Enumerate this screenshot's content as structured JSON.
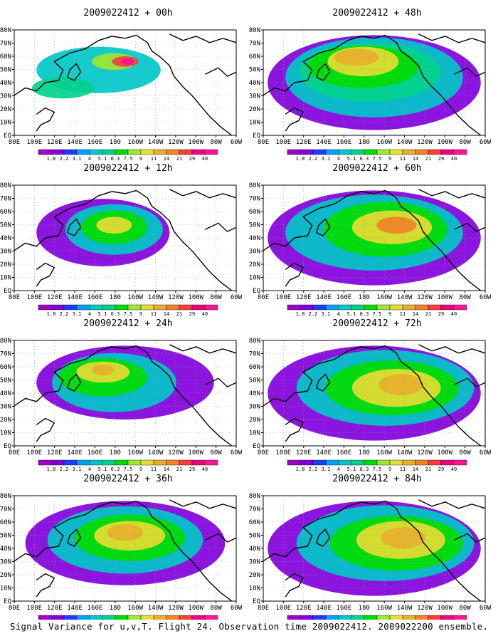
{
  "figure": {
    "caption": "Signal Variance for u,v,T. Flight 24. Observation time 2009022412. 2009022200 ensemble."
  },
  "colorbar": {
    "levels": [
      "1.8",
      "2.2",
      "3.1",
      "4",
      "5.1",
      "6.3",
      "7.5",
      "9",
      "11",
      "14",
      "21",
      "29",
      "40"
    ],
    "colors": [
      "#a000c8",
      "#8200dc",
      "#1e3cff",
      "#00a0ff",
      "#00c8c8",
      "#00d28c",
      "#00dc00",
      "#a0e632",
      "#e6dc32",
      "#e6af2d",
      "#f08228",
      "#fa3c3c",
      "#f00082",
      "#ff1493"
    ]
  },
  "panels": [
    {
      "title": "2009022412 + 00h"
    },
    {
      "title": "2009022412 + 48h"
    },
    {
      "title": "2009022412 + 12h"
    },
    {
      "title": "2009022412 + 60h"
    },
    {
      "title": "2009022412 + 24h"
    },
    {
      "title": "2009022412 + 72h"
    },
    {
      "title": "2009022412 + 36h"
    },
    {
      "title": "2009022412 + 84h"
    }
  ],
  "chart_data": {
    "type": "heatmap",
    "title": "Signal Variance for u,v,T. Flight 24. Observation time 2009022412. 2009022200 ensemble.",
    "x_ticks": [
      "80E",
      "100E",
      "120E",
      "140E",
      "160E",
      "180",
      "160W",
      "140W",
      "120W",
      "100W",
      "80W",
      "60W"
    ],
    "y_ticks": [
      "EQ",
      "10N",
      "20N",
      "30N",
      "40N",
      "50N",
      "60N",
      "70N",
      "80N"
    ],
    "x_range": [
      "80E",
      "60W"
    ],
    "y_range": [
      "EQ",
      "80N"
    ],
    "grid": true,
    "color_levels": [
      1.8,
      2.2,
      3.1,
      4,
      5.1,
      6.3,
      7.5,
      9,
      11,
      14,
      21,
      29,
      40
    ]
  }
}
